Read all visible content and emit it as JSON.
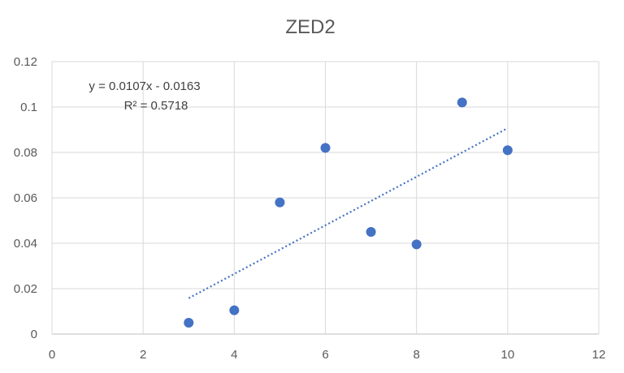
{
  "chart_data": {
    "type": "scatter",
    "title": "ZED2",
    "xlabel": "",
    "ylabel": "",
    "xlim": [
      0,
      12
    ],
    "ylim": [
      0,
      0.12
    ],
    "x_ticks": [
      "0",
      "2",
      "4",
      "6",
      "8",
      "10",
      "12"
    ],
    "y_ticks": [
      "0",
      "0.02",
      "0.04",
      "0.06",
      "0.08",
      "0.1",
      "0.12"
    ],
    "grid": true,
    "legend": "none",
    "series": [
      {
        "x": [
          3,
          4,
          5,
          6,
          7,
          8,
          9,
          10
        ],
        "y": [
          0.005,
          0.0105,
          0.058,
          0.082,
          0.045,
          0.0395,
          0.102,
          0.081
        ]
      }
    ],
    "trendline": {
      "type": "linear",
      "style": "dotted",
      "slope": 0.0107,
      "intercept": -0.0163,
      "x_range": [
        3,
        10
      ],
      "equation_label": "y = 0.0107x - 0.0163",
      "r2_label": "R² = 0.5718"
    },
    "colors": {
      "marker": "#4472C4",
      "trendline": "#4472C4"
    }
  }
}
